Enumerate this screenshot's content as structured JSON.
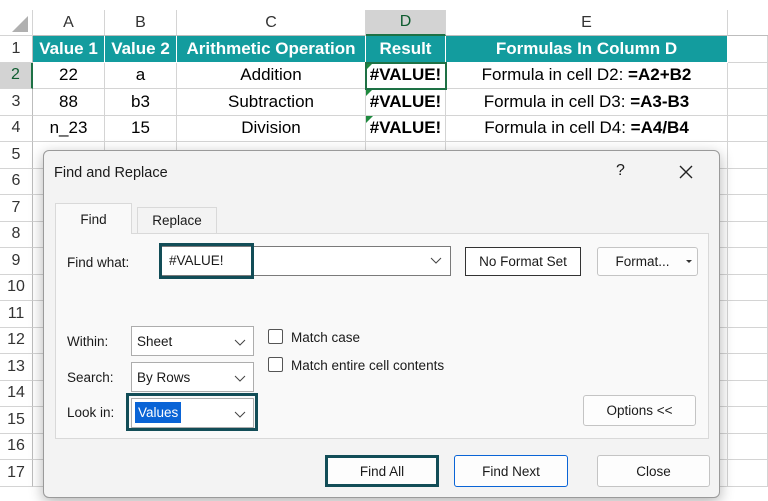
{
  "spreadsheet": {
    "column_headers": [
      "A",
      "B",
      "C",
      "D",
      "E"
    ],
    "row_numbers": [
      1,
      2,
      3,
      4,
      5,
      6,
      7,
      8,
      9,
      10,
      11,
      12,
      13,
      14,
      15,
      16,
      17
    ],
    "rows": [
      [
        "Value 1",
        "Value 2",
        "Arithmetic Operation",
        "Result",
        "Formulas In Column D"
      ],
      [
        22,
        "a",
        "Addition",
        "#VALUE!",
        {
          "prefix": "Formula in cell D2: ",
          "formula": "=A2+B2"
        }
      ],
      [
        88,
        "b3",
        "Subtraction",
        "#VALUE!",
        {
          "prefix": "Formula in cell D3: ",
          "formula": "=A3-B3"
        }
      ],
      [
        "n_23",
        15,
        "Division",
        "#VALUE!",
        {
          "prefix": "Formula in cell D4: ",
          "formula": "=A4/B4"
        }
      ]
    ]
  },
  "dialog": {
    "title": "Find and Replace",
    "help": "?",
    "tabs": [
      "Find",
      "Replace"
    ],
    "find_what_label": "Find what:",
    "find_what_value": "#VALUE!",
    "format_status": "No Format Set",
    "format_button": "Format...",
    "within_label": "Within:",
    "within_value": "Sheet",
    "search_label": "Search:",
    "search_value": "By Rows",
    "look_in_label": "Look in:",
    "look_in_value": "Values",
    "checkboxes": [
      "Match case",
      "Match entire cell contents"
    ],
    "options_button": "Options <<",
    "buttons": [
      "Find All",
      "Find Next",
      "Close"
    ]
  }
}
